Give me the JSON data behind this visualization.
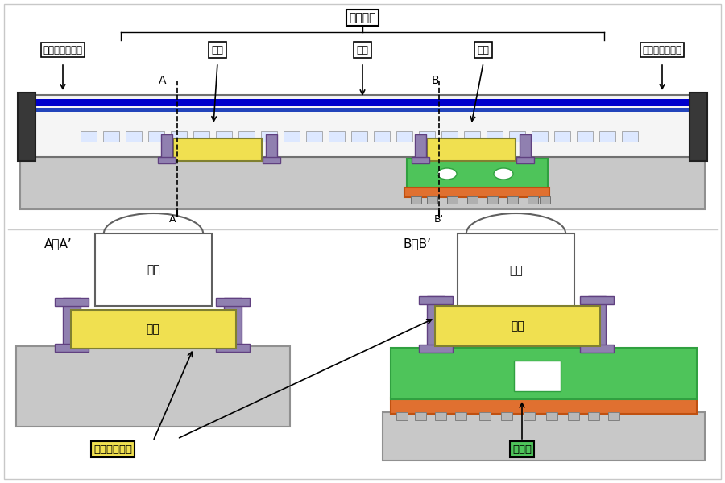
{
  "bg_color": "#ffffff",
  "label_模擬編成": "模擬編成",
  "label_隣の車体の一部": "隣の車体の一部",
  "label_台車": "台車",
  "label_車体": "車体",
  "label_A": "A",
  "label_Ap": "A’",
  "label_B": "B",
  "label_Bp": "B’",
  "label_AA_prime": "A－A’",
  "label_BB_prime": "B－B’",
  "label_電磁加振装置": "電磁加振装置",
  "label_加振台": "加振台",
  "yellow": "#f0e050",
  "green": "#4ec45a",
  "purple": "#9080b0",
  "orange": "#e07030",
  "light_gray": "#c8c8c8",
  "mid_gray": "#b0b0b0",
  "dark_gray": "#505050",
  "blue1": "#0000cc",
  "blue2": "#2244bb",
  "train_white": "#f5f5f5",
  "black": "#000000",
  "white": "#ffffff"
}
